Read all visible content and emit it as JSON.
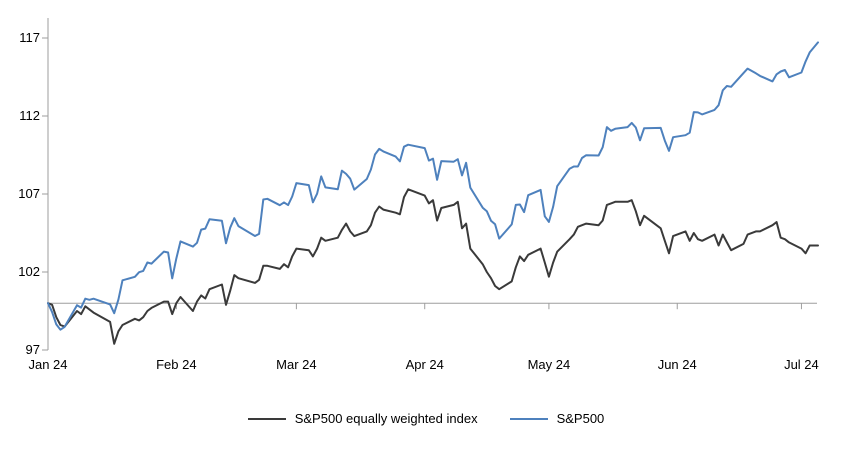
{
  "chart_data": {
    "type": "line",
    "title": "",
    "xlabel": "",
    "ylabel": "",
    "ylim": [
      97,
      117
    ],
    "yticks": [
      117,
      112,
      107,
      102,
      97
    ],
    "baseline_value": 100,
    "x_unit": "days since Jan 1 2024",
    "x_domain_days": 186,
    "xticks": [
      {
        "label": "Jan 24",
        "day": 0
      },
      {
        "label": "Feb 24",
        "day": 31
      },
      {
        "label": "Mar 24",
        "day": 60
      },
      {
        "label": "Apr 24",
        "day": 91
      },
      {
        "label": "May 24",
        "day": 121
      },
      {
        "label": "Jun 24",
        "day": 152
      },
      {
        "label": "Jul 24",
        "day": 182
      }
    ],
    "grid": false,
    "legend_position": "bottom-center",
    "axis_color": "#9e9e9e",
    "days": [
      0,
      1,
      2,
      3,
      4,
      7,
      8,
      9,
      10,
      11,
      15,
      16,
      17,
      18,
      21,
      22,
      23,
      24,
      25,
      28,
      29,
      30,
      31,
      32,
      35,
      36,
      37,
      38,
      39,
      42,
      43,
      44,
      45,
      46,
      50,
      51,
      52,
      53,
      56,
      57,
      58,
      59,
      60,
      63,
      64,
      65,
      66,
      67,
      70,
      71,
      72,
      73,
      74,
      77,
      78,
      79,
      80,
      81,
      84,
      85,
      86,
      87,
      91,
      92,
      93,
      94,
      95,
      98,
      99,
      100,
      101,
      102,
      105,
      106,
      107,
      108,
      109,
      112,
      113,
      114,
      115,
      116,
      119,
      120,
      121,
      122,
      123,
      126,
      127,
      128,
      129,
      130,
      133,
      134,
      135,
      136,
      137,
      140,
      141,
      142,
      143,
      144,
      148,
      149,
      150,
      151,
      154,
      155,
      156,
      157,
      158,
      161,
      162,
      163,
      164,
      165,
      168,
      169,
      171,
      172,
      175,
      176,
      177,
      178,
      179,
      182,
      183,
      184,
      186
    ],
    "series": [
      {
        "name": "S&P500 equally weighted index",
        "color": "#3a3a3a",
        "values": [
          100,
          99.9,
          99.1,
          98.6,
          98.5,
          99.5,
          99.3,
          99.8,
          99.6,
          99.4,
          98.8,
          97.4,
          98.2,
          98.6,
          99.0,
          98.9,
          99.1,
          99.5,
          99.7,
          100.1,
          100.1,
          99.3,
          100.0,
          100.4,
          99.5,
          100.1,
          100.5,
          100.3,
          100.9,
          101.2,
          99.9,
          100.8,
          101.8,
          101.6,
          101.3,
          101.5,
          102.4,
          102.4,
          102.2,
          102.5,
          102.3,
          103.0,
          103.5,
          103.4,
          103.0,
          103.5,
          104.2,
          104.0,
          104.2,
          104.7,
          105.1,
          104.6,
          104.3,
          104.6,
          105.0,
          105.8,
          106.2,
          106.0,
          105.8,
          105.7,
          106.8,
          107.3,
          106.9,
          106.4,
          106.6,
          105.3,
          106.1,
          106.3,
          106.5,
          104.8,
          105.1,
          103.5,
          102.5,
          102.0,
          101.6,
          101.1,
          100.9,
          101.4,
          102.3,
          103.0,
          102.7,
          103.1,
          103.5,
          102.6,
          101.7,
          102.6,
          103.3,
          104.1,
          104.4,
          104.9,
          105.0,
          105.1,
          105.0,
          105.3,
          106.3,
          106.4,
          106.5,
          106.5,
          106.6,
          105.9,
          105.0,
          105.6,
          104.8,
          104.0,
          103.2,
          104.3,
          104.6,
          104.0,
          104.5,
          104.1,
          104.0,
          104.4,
          103.7,
          104.4,
          103.9,
          103.4,
          103.8,
          104.4,
          104.6,
          104.6,
          105.0,
          105.2,
          104.2,
          104.1,
          103.9,
          103.5,
          103.2,
          103.7,
          103.7
        ]
      },
      {
        "name": "S&P500",
        "color": "#4e81bd",
        "values": [
          100,
          99.43,
          98.64,
          98.3,
          98.48,
          99.87,
          99.72,
          100.29,
          100.22,
          100.29,
          99.92,
          99.36,
          100.23,
          101.47,
          101.69,
          101.99,
          102.07,
          102.61,
          102.54,
          103.31,
          103.25,
          101.59,
          102.86,
          103.96,
          103.63,
          103.87,
          104.72,
          104.78,
          105.38,
          105.28,
          103.84,
          104.84,
          105.45,
          104.94,
          104.31,
          104.44,
          106.65,
          106.69,
          106.28,
          106.46,
          106.29,
          106.84,
          107.7,
          107.57,
          106.47,
          107.02,
          108.13,
          107.42,
          107.3,
          108.5,
          108.29,
          107.98,
          107.28,
          107.96,
          108.57,
          109.53,
          109.89,
          109.73,
          109.4,
          109.09,
          110.03,
          110.16,
          109.94,
          109.14,
          109.26,
          107.91,
          109.11,
          109.07,
          109.23,
          108.19,
          109.0,
          107.41,
          106.12,
          105.9,
          105.29,
          105.06,
          104.14,
          105.05,
          106.3,
          106.33,
          105.84,
          106.92,
          107.26,
          105.57,
          105.21,
          106.17,
          107.5,
          108.62,
          108.76,
          108.76,
          109.31,
          109.49,
          109.47,
          110.0,
          111.29,
          111.05,
          111.18,
          111.29,
          111.56,
          111.26,
          110.44,
          111.21,
          111.24,
          110.42,
          109.76,
          110.64,
          110.77,
          110.93,
          112.25,
          112.23,
          112.1,
          112.39,
          112.69,
          113.65,
          113.92,
          113.87,
          114.75,
          115.04,
          114.74,
          114.57,
          114.22,
          114.67,
          114.85,
          114.95,
          114.48,
          114.79,
          115.5,
          116.08,
          116.72
        ]
      }
    ]
  }
}
